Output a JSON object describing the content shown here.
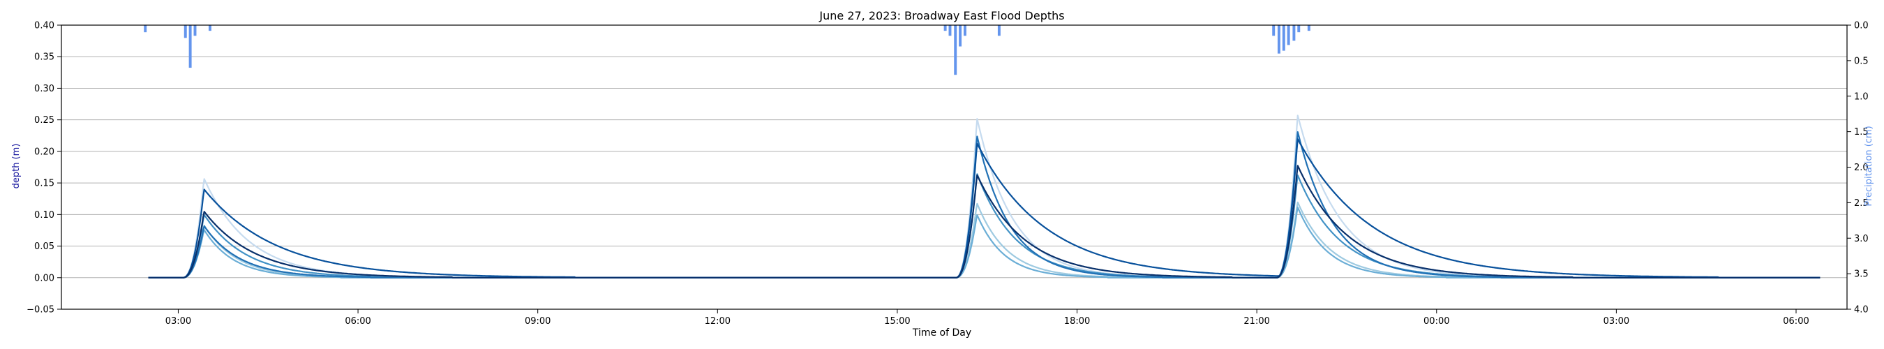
{
  "chart_data": {
    "type": "line",
    "title": "June 27, 2023: Broadway East Flood Depths",
    "xlabel": "Time of Day",
    "ylabel": "depth (m)",
    "y2label": "Precipitation (cm)",
    "x_unit": "hours from 00:00 on June 27, 2023",
    "xlim": [
      1.05,
      30.85
    ],
    "ylim": [
      -0.05,
      0.4
    ],
    "y2lim_inverted": [
      4.0,
      0.0
    ],
    "xticks": [
      {
        "x": 3,
        "label": "03:00"
      },
      {
        "x": 6,
        "label": "06:00"
      },
      {
        "x": 9,
        "label": "09:00"
      },
      {
        "x": 12,
        "label": "12:00"
      },
      {
        "x": 15,
        "label": "15:00"
      },
      {
        "x": 18,
        "label": "18:00"
      },
      {
        "x": 21,
        "label": "21:00"
      },
      {
        "x": 24,
        "label": "00:00"
      },
      {
        "x": 27,
        "label": "03:00"
      },
      {
        "x": 30,
        "label": "06:00"
      }
    ],
    "yticks": [
      {
        "v": -0.05,
        "label": "−0.05"
      },
      {
        "v": 0.0,
        "label": "0.00"
      },
      {
        "v": 0.05,
        "label": "0.05"
      },
      {
        "v": 0.1,
        "label": "0.10"
      },
      {
        "v": 0.15,
        "label": "0.15"
      },
      {
        "v": 0.2,
        "label": "0.20"
      },
      {
        "v": 0.25,
        "label": "0.25"
      },
      {
        "v": 0.3,
        "label": "0.30"
      },
      {
        "v": 0.35,
        "label": "0.35"
      },
      {
        "v": 0.4,
        "label": "0.40"
      }
    ],
    "y2ticks": [
      {
        "v": 0.0,
        "label": "0.0"
      },
      {
        "v": 0.5,
        "label": "0.5"
      },
      {
        "v": 1.0,
        "label": "1.0"
      },
      {
        "v": 1.5,
        "label": "1.5"
      },
      {
        "v": 2.0,
        "label": "2.0"
      },
      {
        "v": 2.5,
        "label": "2.5"
      },
      {
        "v": 3.0,
        "label": "3.0"
      },
      {
        "v": 3.5,
        "label": "3.5"
      },
      {
        "v": 4.0,
        "label": "4.0"
      }
    ],
    "grid": "horizontal",
    "series_start": 2.5,
    "series_end": 30.4,
    "events": [
      {
        "start": 3.08,
        "peak_time": 3.43
      },
      {
        "start": 15.98,
        "peak_time": 16.33
      },
      {
        "start": 21.33,
        "peak_time": 21.68
      }
    ],
    "series": [
      {
        "color": "#c6dbef",
        "peaks": [
          0.157,
          0.253,
          0.258
        ],
        "recession": [
          0.75,
          0.6,
          0.7
        ],
        "sag": [
          0.12,
          0.1,
          0.1
        ]
      },
      {
        "color": "#9ecae1",
        "peaks": [
          0.083,
          0.118,
          0.12
        ],
        "recession": [
          0.55,
          0.5,
          0.55
        ],
        "sag": [
          0.08,
          0.08,
          0.08
        ]
      },
      {
        "color": "#6baed6",
        "peaks": [
          0.076,
          0.1,
          0.112
        ],
        "recession": [
          0.5,
          0.45,
          0.5
        ],
        "sag": [
          0.06,
          0.06,
          0.06
        ]
      },
      {
        "color": "#4292c6",
        "peaks": [
          0.1,
          0.165,
          0.163
        ],
        "recession": [
          0.7,
          0.65,
          0.7
        ],
        "sag": [
          0.1,
          0.1,
          0.1
        ]
      },
      {
        "color": "#2171b5",
        "peaks": [
          0.082,
          0.225,
          0.232
        ],
        "recession": [
          0.6,
          0.55,
          0.6
        ],
        "sag": [
          0.1,
          0.1,
          0.1
        ]
      },
      {
        "color": "#08519c",
        "peaks": [
          0.14,
          0.213,
          0.22
        ],
        "recession": [
          1.2,
          1.15,
          1.25
        ],
        "sag": [
          0.15,
          0.18,
          0.15
        ]
      },
      {
        "color": "#08306b",
        "peaks": [
          0.105,
          0.163,
          0.178
        ],
        "recession": [
          0.85,
          0.8,
          0.85
        ],
        "sag": [
          0.12,
          0.12,
          0.12
        ]
      }
    ],
    "precip_color": "#6495ed",
    "precipitation": [
      {
        "x": 2.45,
        "v": 0.1
      },
      {
        "x": 3.12,
        "v": 0.18
      },
      {
        "x": 3.2,
        "v": 0.6
      },
      {
        "x": 3.28,
        "v": 0.15
      },
      {
        "x": 3.53,
        "v": 0.08
      },
      {
        "x": 15.8,
        "v": 0.08
      },
      {
        "x": 15.88,
        "v": 0.15
      },
      {
        "x": 15.97,
        "v": 0.7
      },
      {
        "x": 16.05,
        "v": 0.3
      },
      {
        "x": 16.13,
        "v": 0.15
      },
      {
        "x": 16.7,
        "v": 0.15
      },
      {
        "x": 21.28,
        "v": 0.15
      },
      {
        "x": 21.37,
        "v": 0.4
      },
      {
        "x": 21.45,
        "v": 0.36
      },
      {
        "x": 21.53,
        "v": 0.28
      },
      {
        "x": 21.62,
        "v": 0.22
      },
      {
        "x": 21.7,
        "v": 0.1
      },
      {
        "x": 21.87,
        "v": 0.08
      }
    ]
  }
}
